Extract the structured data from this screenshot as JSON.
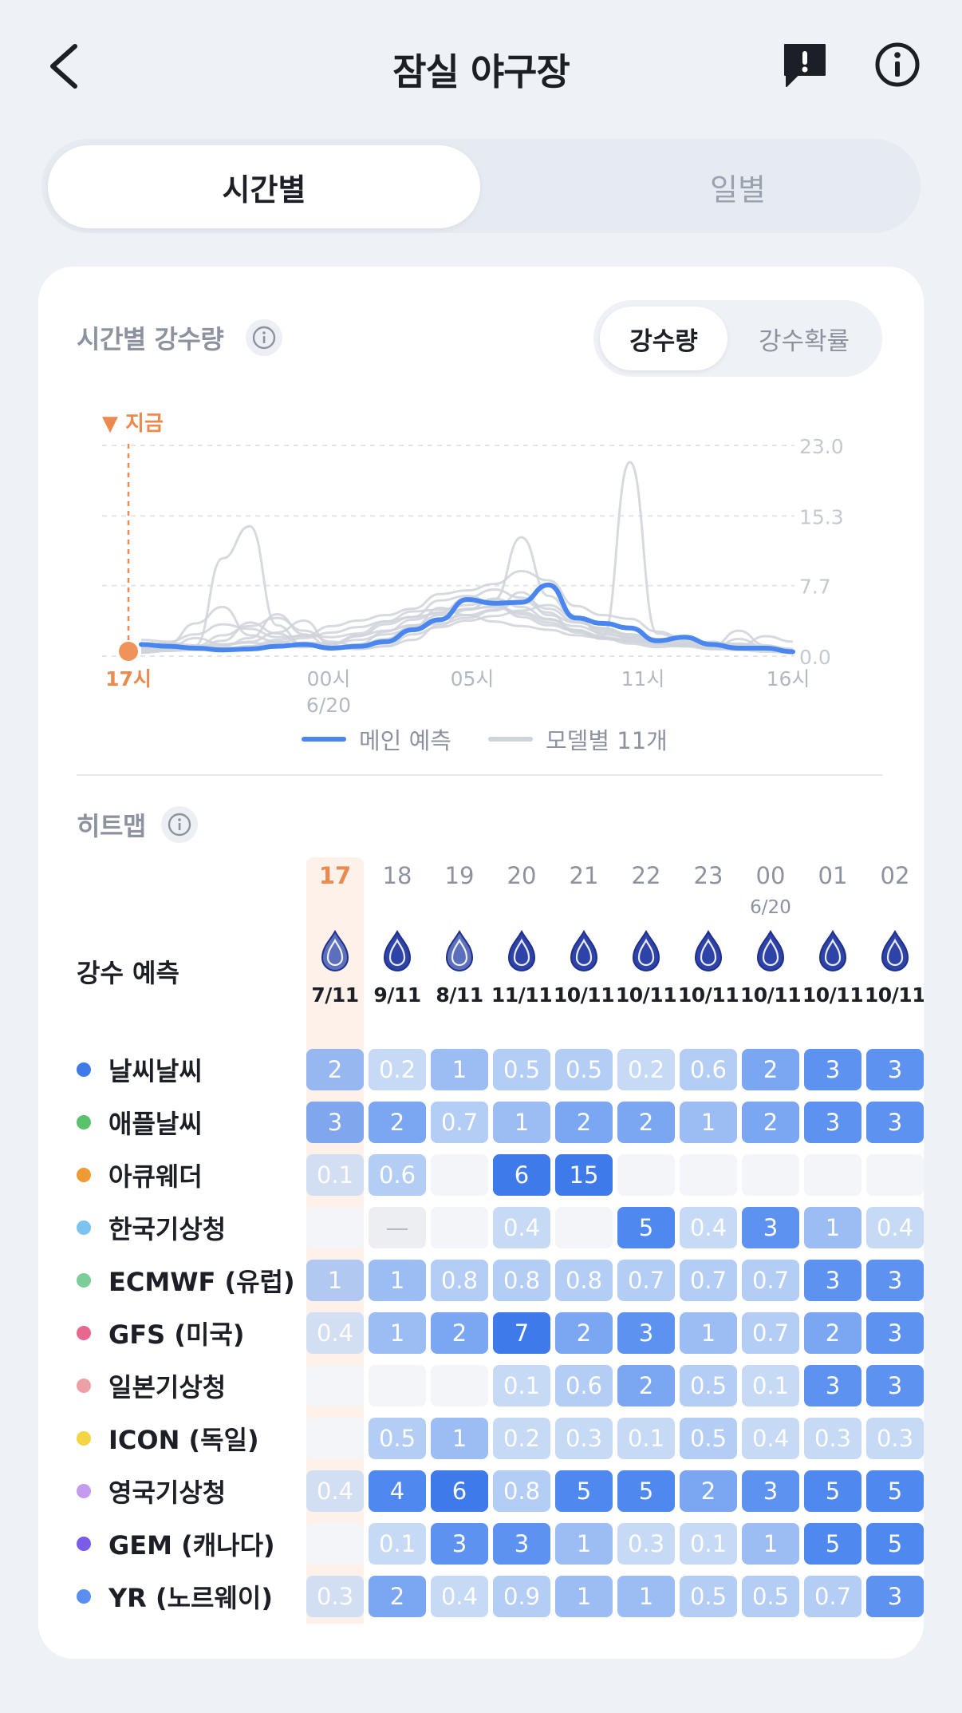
{
  "header": {
    "title": "잠실 야구장",
    "back_icon": "chevron-left-icon",
    "report_icon": "report-icon",
    "info_icon": "info-icon"
  },
  "view_tabs": [
    {
      "label": "시간별",
      "active": true
    },
    {
      "label": "일별",
      "active": false
    }
  ],
  "precip_chart": {
    "title": "시간별 강수량",
    "toggle": [
      {
        "label": "강수량",
        "active": true
      },
      {
        "label": "강수확률",
        "active": false
      }
    ],
    "now_label": "▼ 지금"
  },
  "chart_data": {
    "type": "line",
    "x_ticks": [
      {
        "label": "17시",
        "now": true
      },
      {
        "label": "00시",
        "sub": "6/20"
      },
      {
        "label": "05시"
      },
      {
        "label": "11시"
      },
      {
        "label": "16시"
      }
    ],
    "y_ticks": [
      "23.0",
      "15.3",
      "7.7",
      "0.0"
    ],
    "ylim": [
      0,
      23
    ],
    "x_hours": 23,
    "series": [
      {
        "name": "메인 예측",
        "color": "#4a86f0",
        "values": [
          1.1,
          0.9,
          0.7,
          0.5,
          0.6,
          0.9,
          1.1,
          0.7,
          0.9,
          1.4,
          2.7,
          3.8,
          6.0,
          5.6,
          5.7,
          7.6,
          4.0,
          3.4,
          2.9,
          1.5,
          1.9,
          1.1,
          0.7,
          0.7,
          0.3
        ]
      },
      {
        "values": [
          0.6,
          1.2,
          3.4,
          5.2,
          2.1,
          1.4,
          0.9,
          1.1,
          2.0,
          3.3,
          4.1,
          5.9,
          6.4,
          5.6,
          4.1,
          3.2,
          2.6,
          1.7,
          1.4,
          1.0,
          0.9,
          1.1,
          1.2,
          0.8,
          0.5
        ],
        "color": "#cfd3da"
      },
      {
        "values": [
          0.4,
          0.6,
          1.0,
          10.5,
          14.0,
          3.2,
          1.0,
          0.8,
          1.1,
          2.5,
          3.8,
          4.6,
          6.2,
          7.1,
          6.2,
          5.0,
          3.6,
          2.8,
          2.0,
          1.2,
          1.1,
          0.9,
          0.6,
          0.9,
          0.6
        ],
        "color": "#cfd3da"
      },
      {
        "values": [
          1.6,
          1.4,
          2.2,
          3.3,
          2.8,
          1.9,
          2.0,
          3.1,
          3.7,
          4.3,
          5.0,
          6.6,
          7.0,
          7.7,
          9.1,
          8.1,
          5.3,
          4.3,
          3.9,
          2.5,
          1.8,
          1.3,
          1.1,
          0.8,
          0.6
        ],
        "color": "#cfd3da"
      },
      {
        "values": [
          0.3,
          0.8,
          1.8,
          1.1,
          1.4,
          2.4,
          3.7,
          1.0,
          0.6,
          0.9,
          1.6,
          3.2,
          4.9,
          6.1,
          5.2,
          3.9,
          2.7,
          2.0,
          21.0,
          2.3,
          1.5,
          0.6,
          0.8,
          0.9,
          0.6
        ],
        "color": "#cfd3da"
      },
      {
        "values": [
          0.2,
          0.4,
          0.9,
          2.1,
          3.1,
          4.0,
          2.6,
          1.4,
          0.9,
          1.2,
          2.9,
          5.1,
          4.3,
          3.6,
          3.1,
          2.7,
          2.1,
          1.8,
          1.2,
          0.8,
          1.0,
          1.4,
          0.7,
          0.5,
          0.4
        ],
        "color": "#cfd3da"
      },
      {
        "values": [
          0.9,
          1.3,
          1.0,
          0.7,
          0.9,
          1.6,
          2.1,
          1.9,
          2.3,
          3.6,
          4.7,
          4.9,
          5.4,
          6.0,
          12.8,
          6.4,
          3.8,
          2.6,
          2.2,
          1.7,
          1.2,
          1.0,
          0.8,
          0.6,
          0.5
        ],
        "color": "#cfd3da"
      },
      {
        "values": [
          0.5,
          0.7,
          0.6,
          0.9,
          1.8,
          4.4,
          2.2,
          0.8,
          0.6,
          0.9,
          2.2,
          3.0,
          3.7,
          4.2,
          4.8,
          5.4,
          4.0,
          2.2,
          1.9,
          1.5,
          1.1,
          0.6,
          0.5,
          0.3,
          0.2
        ],
        "color": "#cfd3da"
      },
      {
        "values": [
          0.4,
          0.5,
          0.6,
          0.7,
          0.5,
          0.9,
          1.3,
          1.2,
          1.6,
          2.2,
          2.8,
          3.4,
          4.0,
          4.8,
          5.9,
          4.6,
          2.4,
          1.8,
          1.5,
          1.3,
          0.9,
          0.8,
          2.6,
          1.0,
          0.5
        ],
        "color": "#cfd3da"
      },
      {
        "values": [
          1.2,
          0.9,
          0.7,
          1.5,
          3.5,
          2.3,
          1.1,
          0.7,
          1.0,
          1.7,
          3.1,
          4.3,
          5.0,
          5.2,
          4.4,
          3.5,
          2.6,
          1.9,
          1.6,
          1.2,
          1.0,
          0.9,
          0.8,
          0.7,
          0.6
        ],
        "color": "#cfd3da"
      },
      {
        "values": [
          0.2,
          0.4,
          0.5,
          0.6,
          0.9,
          1.3,
          1.8,
          2.4,
          3.0,
          3.6,
          4.1,
          4.5,
          4.9,
          5.3,
          4.6,
          3.8,
          3.1,
          2.4,
          1.8,
          1.3,
          0.9,
          0.6,
          1.7,
          0.8,
          0.5
        ],
        "color": "#cfd3da"
      },
      {
        "values": [
          0.7,
          0.6,
          0.8,
          1.1,
          1.3,
          1.0,
          0.8,
          1.2,
          2.1,
          2.6,
          3.2,
          3.8,
          4.3,
          4.9,
          6.8,
          4.3,
          3.5,
          2.9,
          2.2,
          1.7,
          1.4,
          1.1,
          0.9,
          2.0,
          1.4
        ],
        "color": "#cfd3da"
      }
    ],
    "legend": [
      {
        "label": "메인 예측",
        "color": "#4a86f0"
      },
      {
        "label": "모델별 11개",
        "color": "#cfd3da"
      }
    ]
  },
  "heatmap": {
    "title": "히트맵",
    "precip_label": "강수 예측",
    "hours": [
      {
        "h": "17",
        "now": true,
        "ratio": "7/11",
        "level": 1
      },
      {
        "h": "18",
        "ratio": "9/11",
        "level": 2
      },
      {
        "h": "19",
        "ratio": "8/11",
        "level": 1
      },
      {
        "h": "20",
        "ratio": "11/11",
        "level": 2
      },
      {
        "h": "21",
        "ratio": "10/11",
        "level": 2
      },
      {
        "h": "22",
        "ratio": "10/11",
        "level": 2
      },
      {
        "h": "23",
        "ratio": "10/11",
        "level": 2
      },
      {
        "h": "00",
        "sub": "6/20",
        "ratio": "10/11",
        "level": 2
      },
      {
        "h": "01",
        "ratio": "10/11",
        "level": 2
      },
      {
        "h": "02",
        "ratio": "10/11",
        "level": 2
      }
    ],
    "rows": [
      {
        "name": "날씨날씨",
        "color": "#3f7be8",
        "values": [
          "2",
          "0.2",
          "1",
          "0.5",
          "0.5",
          "0.2",
          "0.6",
          "2",
          "3",
          "3"
        ]
      },
      {
        "name": "애플날씨",
        "color": "#5ac26a",
        "values": [
          "3",
          "2",
          "0.7",
          "1",
          "2",
          "2",
          "1",
          "2",
          "3",
          "3"
        ]
      },
      {
        "name": "아큐웨더",
        "color": "#f09a35",
        "values": [
          "0.1",
          "0.6",
          "",
          "6",
          "15",
          "",
          "",
          "",
          "",
          ""
        ]
      },
      {
        "name": "한국기상청",
        "color": "#7cc3f2",
        "values": [
          "",
          "—",
          "",
          "0.4",
          "",
          "5",
          "0.4",
          "3",
          "1",
          "0.4"
        ]
      },
      {
        "name": "ECMWF (유럽)",
        "color": "#7ccd98",
        "values": [
          "1",
          "1",
          "0.8",
          "0.8",
          "0.8",
          "0.7",
          "0.7",
          "0.7",
          "3",
          "3"
        ]
      },
      {
        "name": "GFS (미국)",
        "color": "#e8678f",
        "values": [
          "0.4",
          "1",
          "2",
          "7",
          "2",
          "3",
          "1",
          "0.7",
          "2",
          "3"
        ]
      },
      {
        "name": "일본기상청",
        "color": "#eda0a8",
        "values": [
          "",
          "",
          "",
          "0.1",
          "0.6",
          "2",
          "0.5",
          "0.1",
          "3",
          "3"
        ]
      },
      {
        "name": "ICON (독일)",
        "color": "#f5d444",
        "values": [
          "",
          "0.5",
          "1",
          "0.2",
          "0.3",
          "0.1",
          "0.5",
          "0.4",
          "0.3",
          "0.3"
        ]
      },
      {
        "name": "영국기상청",
        "color": "#c59bf0",
        "values": [
          "0.4",
          "4",
          "6",
          "0.8",
          "5",
          "5",
          "2",
          "3",
          "5",
          "5"
        ]
      },
      {
        "name": "GEM (캐나다)",
        "color": "#7a5ce8",
        "values": [
          "",
          "0.1",
          "3",
          "3",
          "1",
          "0.3",
          "0.1",
          "1",
          "5",
          "5"
        ]
      },
      {
        "name": "YR (노르웨이)",
        "color": "#5a8ef0",
        "values": [
          "0.3",
          "2",
          "0.4",
          "0.9",
          "1",
          "1",
          "0.5",
          "0.5",
          "0.7",
          "3"
        ]
      }
    ]
  }
}
